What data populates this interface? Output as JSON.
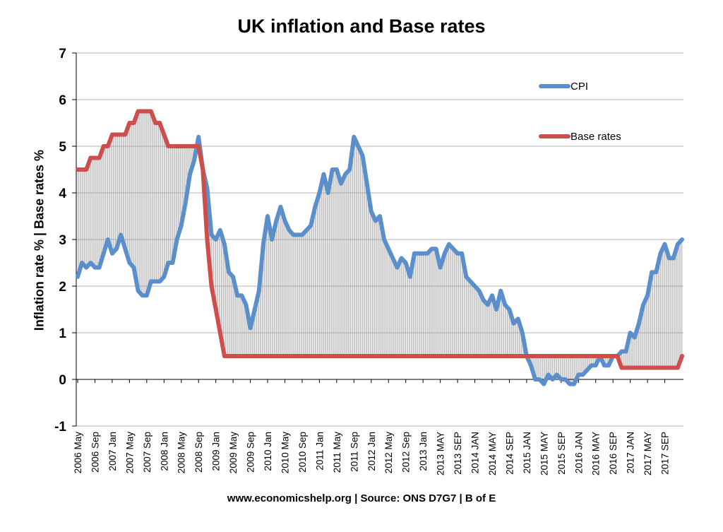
{
  "chart_data": {
    "type": "line",
    "title": "UK inflation and Base rates",
    "ylabel": "Inflation rate % | Base rates %",
    "xlabel": "",
    "ylim": [
      -1,
      7
    ],
    "yticks": [
      "-1",
      "0",
      "1",
      "2",
      "3",
      "4",
      "5",
      "6",
      "7"
    ],
    "grid": true,
    "legend_position": "top-right",
    "x_tick_labels": [
      "2006 May",
      "2006  Sep",
      "2007 Jan",
      "2007 May",
      "2007  Sep",
      "2008 Jan",
      "2008 May",
      "2008  Sep",
      "2009 Jan",
      "2009 May",
      "2009  Sep",
      "2010 Jan",
      "2010 May",
      "2010  Sep",
      "2011 Jan",
      "2011 May",
      "2011  Sep",
      "2012 Jan",
      "2012 May",
      "2012  Sep",
      "2013 Jan",
      "2013 MAY",
      "2013 SEP",
      "2014 JAN",
      "2014 MAY",
      "2014 SEP",
      "2015 JAN",
      "2015 MAY",
      "2015 SEP",
      "2016 JAN",
      "2016 MAY",
      "2016 SEP",
      "2017 JAN",
      "2017 MAY",
      "2017 SEP"
    ],
    "series": [
      {
        "name": "CPI",
        "color": "#5B8FCC",
        "values": [
          2.2,
          2.5,
          2.4,
          2.5,
          2.4,
          2.4,
          2.7,
          3.0,
          2.7,
          2.8,
          3.1,
          2.8,
          2.5,
          2.4,
          1.9,
          1.8,
          1.8,
          2.1,
          2.1,
          2.1,
          2.2,
          2.5,
          2.5,
          3.0,
          3.3,
          3.8,
          4.4,
          4.7,
          5.2,
          4.5,
          4.1,
          3.1,
          3.0,
          3.2,
          2.9,
          2.3,
          2.2,
          1.8,
          1.8,
          1.6,
          1.1,
          1.5,
          1.9,
          2.9,
          3.5,
          3.0,
          3.4,
          3.7,
          3.4,
          3.2,
          3.1,
          3.1,
          3.1,
          3.2,
          3.3,
          3.7,
          4.0,
          4.4,
          4.0,
          4.5,
          4.5,
          4.2,
          4.4,
          4.5,
          5.2,
          5.0,
          4.8,
          4.2,
          3.6,
          3.4,
          3.5,
          3.0,
          2.8,
          2.6,
          2.4,
          2.6,
          2.5,
          2.2,
          2.7,
          2.7,
          2.7,
          2.7,
          2.8,
          2.8,
          2.4,
          2.7,
          2.9,
          2.8,
          2.7,
          2.7,
          2.2,
          2.1,
          2.0,
          1.9,
          1.7,
          1.6,
          1.8,
          1.5,
          1.9,
          1.6,
          1.5,
          1.2,
          1.3,
          1.0,
          0.5,
          0.3,
          0.0,
          0.0,
          -0.1,
          0.1,
          0.0,
          0.1,
          0.0,
          0.0,
          -0.1,
          -0.1,
          0.1,
          0.1,
          0.2,
          0.3,
          0.3,
          0.5,
          0.3,
          0.3,
          0.5,
          0.5,
          0.6,
          0.6,
          1.0,
          0.9,
          1.2,
          1.6,
          1.8,
          2.3,
          2.3,
          2.7,
          2.9,
          2.6,
          2.6,
          2.9,
          3.0
        ]
      },
      {
        "name": "Base rates",
        "color": "#CE4E4B",
        "values": [
          4.5,
          4.5,
          4.5,
          4.75,
          4.75,
          4.75,
          5.0,
          5.0,
          5.25,
          5.25,
          5.25,
          5.25,
          5.5,
          5.5,
          5.75,
          5.75,
          5.75,
          5.75,
          5.5,
          5.5,
          5.25,
          5.0,
          5.0,
          5.0,
          5.0,
          5.0,
          5.0,
          5.0,
          5.0,
          4.5,
          3.0,
          2.0,
          1.5,
          1.0,
          0.5,
          0.5,
          0.5,
          0.5,
          0.5,
          0.5,
          0.5,
          0.5,
          0.5,
          0.5,
          0.5,
          0.5,
          0.5,
          0.5,
          0.5,
          0.5,
          0.5,
          0.5,
          0.5,
          0.5,
          0.5,
          0.5,
          0.5,
          0.5,
          0.5,
          0.5,
          0.5,
          0.5,
          0.5,
          0.5,
          0.5,
          0.5,
          0.5,
          0.5,
          0.5,
          0.5,
          0.5,
          0.5,
          0.5,
          0.5,
          0.5,
          0.5,
          0.5,
          0.5,
          0.5,
          0.5,
          0.5,
          0.5,
          0.5,
          0.5,
          0.5,
          0.5,
          0.5,
          0.5,
          0.5,
          0.5,
          0.5,
          0.5,
          0.5,
          0.5,
          0.5,
          0.5,
          0.5,
          0.5,
          0.5,
          0.5,
          0.5,
          0.5,
          0.5,
          0.5,
          0.5,
          0.5,
          0.5,
          0.5,
          0.5,
          0.5,
          0.5,
          0.5,
          0.5,
          0.5,
          0.5,
          0.5,
          0.5,
          0.5,
          0.5,
          0.5,
          0.5,
          0.5,
          0.5,
          0.5,
          0.5,
          0.5,
          0.25,
          0.25,
          0.25,
          0.25,
          0.25,
          0.25,
          0.25,
          0.25,
          0.25,
          0.25,
          0.25,
          0.25,
          0.25,
          0.25,
          0.5
        ]
      }
    ],
    "source_note": "www.economicshelp.org | Source: ONS D7G7 | B of E"
  }
}
